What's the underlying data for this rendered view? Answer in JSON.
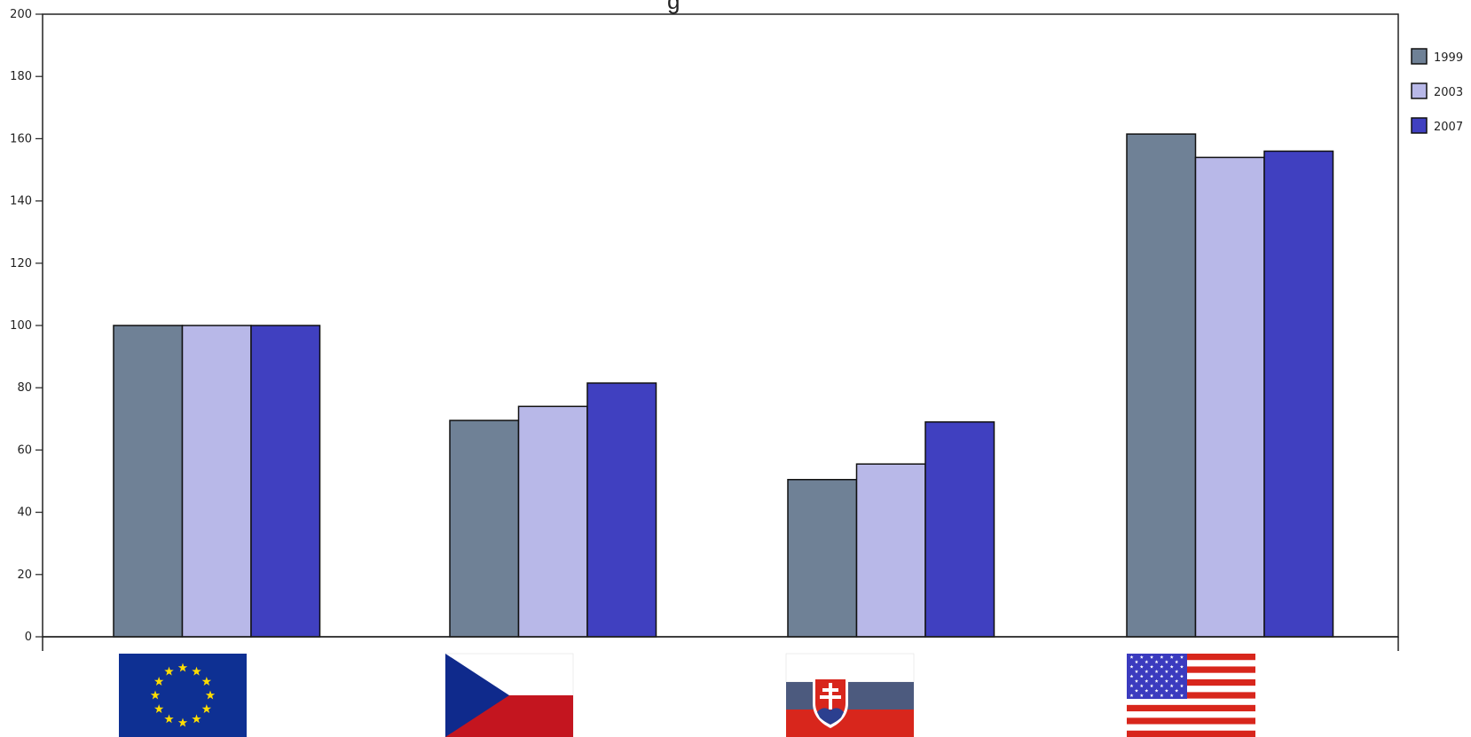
{
  "chart_data": {
    "type": "bar",
    "title_fragment": "g",
    "categories": [
      "EU",
      "Czech Republic",
      "Slovakia",
      "USA"
    ],
    "category_icons": [
      "eu-flag-icon",
      "czech-flag-icon",
      "slovakia-flag-icon",
      "usa-flag-icon"
    ],
    "series": [
      {
        "name": "1999",
        "color": "#6f8196",
        "values": [
          100,
          69.5,
          50.5,
          161.5
        ]
      },
      {
        "name": "2003",
        "color": "#b8b8e8",
        "values": [
          100,
          74,
          55.5,
          154
        ]
      },
      {
        "name": "2007",
        "color": "#4040c0",
        "values": [
          100,
          81.5,
          69,
          156
        ]
      }
    ],
    "ylim": [
      0,
      200
    ],
    "yticks": [
      0,
      20,
      40,
      60,
      80,
      100,
      120,
      140,
      160,
      180,
      200
    ],
    "grid": false,
    "legend": "right"
  }
}
